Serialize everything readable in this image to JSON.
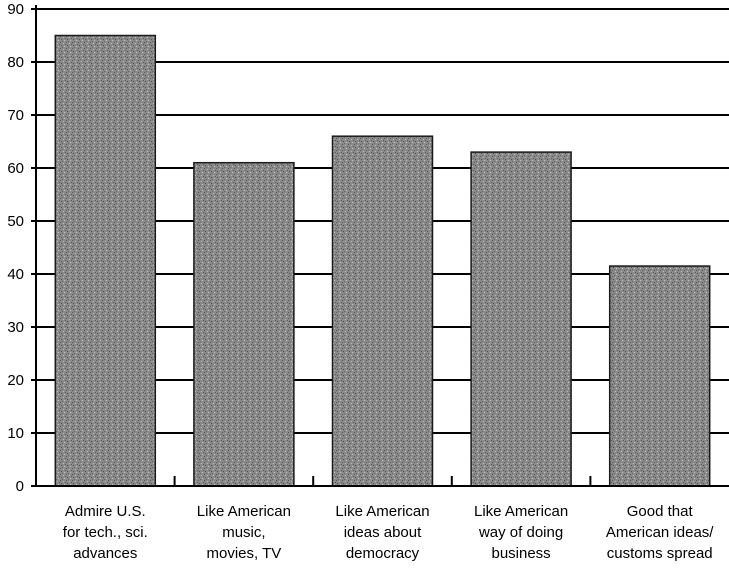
{
  "chart_data": {
    "type": "bar",
    "title": "",
    "xlabel": "",
    "ylabel": "",
    "ylim": [
      0,
      90
    ],
    "yticks": [
      0,
      10,
      20,
      30,
      40,
      50,
      60,
      70,
      80,
      90
    ],
    "grid": true,
    "categories": [
      [
        "Admire U.S.",
        "for tech., sci.",
        "advances"
      ],
      [
        "Like American",
        "music,",
        "movies, TV"
      ],
      [
        "Like American",
        "ideas about",
        "democracy"
      ],
      [
        "Like American",
        "way of doing",
        "business"
      ],
      [
        "Good that",
        "American ideas/",
        "customs spread"
      ]
    ],
    "values": [
      85,
      61,
      66,
      63,
      41.5
    ],
    "colors": {
      "bar_fill": "#7a7a7a",
      "bar_edge": "#1a1a1a",
      "axis": "#000000",
      "grid": "#000000"
    }
  }
}
